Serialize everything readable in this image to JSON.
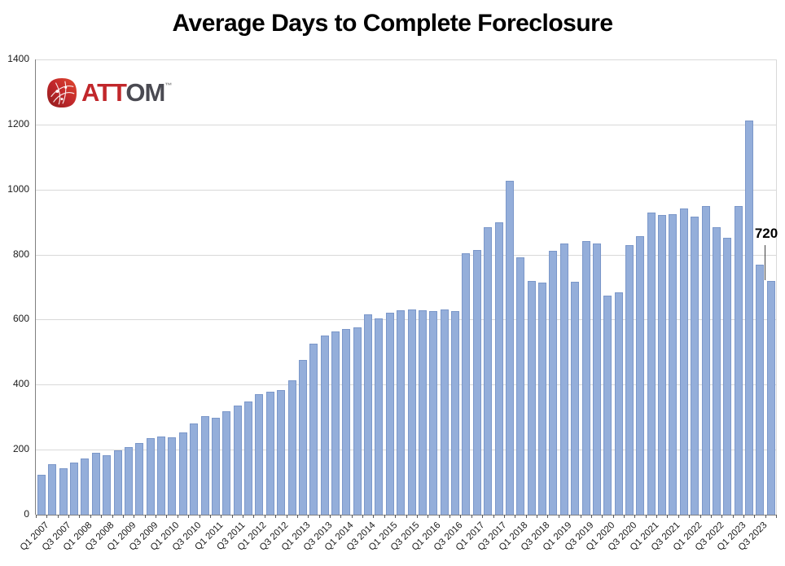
{
  "page": {
    "title": "Average Days to Complete Foreclosure"
  },
  "logo": {
    "att": "ATT",
    "om": "OM",
    "tm": "™"
  },
  "annotation": {
    "label": "720",
    "points_to": "Q4 2023"
  },
  "chart_data": {
    "type": "bar",
    "title": "Average Days to Complete Foreclosure",
    "xlabel": "",
    "ylabel": "",
    "ylim": [
      0,
      1400
    ],
    "yticks": [
      0,
      200,
      400,
      600,
      800,
      1000,
      1200,
      1400
    ],
    "grid": true,
    "legend": false,
    "bar_fill": "#94aeda",
    "bar_border": "#7b97c9",
    "categories": [
      "Q1 2007",
      "Q2 2007",
      "Q3 2007",
      "Q4 2007",
      "Q1 2008",
      "Q2 2008",
      "Q3 2008",
      "Q4 2008",
      "Q1 2009",
      "Q2 2009",
      "Q3 2009",
      "Q4 2009",
      "Q1 2010",
      "Q2 2010",
      "Q3 2010",
      "Q4 2010",
      "Q1 2011",
      "Q2 2011",
      "Q3 2011",
      "Q4 2011",
      "Q1 2012",
      "Q2 2012",
      "Q3 2012",
      "Q4 2012",
      "Q1 2013",
      "Q2 2013",
      "Q3 2013",
      "Q4 2013",
      "Q1 2014",
      "Q2 2014",
      "Q3 2014",
      "Q4 2014",
      "Q1 2015",
      "Q2 2015",
      "Q3 2015",
      "Q4 2015",
      "Q1 2016",
      "Q2 2016",
      "Q3 2016",
      "Q4 2016",
      "Q1 2017",
      "Q2 2017",
      "Q3 2017",
      "Q4 2017",
      "Q1 2018",
      "Q2 2018",
      "Q3 2018",
      "Q4 2018",
      "Q1 2019",
      "Q2 2019",
      "Q3 2019",
      "Q4 2019",
      "Q1 2020",
      "Q2 2020",
      "Q3 2020",
      "Q4 2020",
      "Q1 2021",
      "Q2 2021",
      "Q3 2021",
      "Q4 2021",
      "Q1 2022",
      "Q2 2022",
      "Q3 2022",
      "Q4 2022",
      "Q1 2023",
      "Q2 2023",
      "Q3 2023",
      "Q4 2023"
    ],
    "values": [
      122,
      155,
      144,
      160,
      172,
      190,
      183,
      198,
      208,
      221,
      235,
      240,
      237,
      253,
      280,
      304,
      298,
      318,
      336,
      348,
      370,
      378,
      382,
      414,
      477,
      526,
      551,
      564,
      572,
      577,
      615,
      604,
      620,
      629,
      630,
      629,
      625,
      631,
      625,
      803,
      814,
      883,
      899,
      1027,
      791,
      720,
      713,
      811,
      835,
      716,
      841,
      834,
      673,
      685,
      830,
      857,
      930,
      922,
      924,
      941,
      917,
      948,
      885,
      852,
      950,
      1212,
      770,
      720
    ],
    "x_tick_labels": [
      "Q1 2007",
      "Q3 2007",
      "Q1 2008",
      "Q3 2008",
      "Q1 2009",
      "Q3 2009",
      "Q1 2010",
      "Q3 2010",
      "Q1 2011",
      "Q3 2011",
      "Q1 2012",
      "Q3 2012",
      "Q1 2013",
      "Q3 2013",
      "Q1 2014",
      "Q3 2014",
      "Q1 2015",
      "Q3 2015",
      "Q1 2016",
      "Q3 2016",
      "Q1 2017",
      "Q3 2017",
      "Q1 2018",
      "Q3 2018",
      "Q1 2019",
      "Q3 2019",
      "Q1 2020",
      "Q3 2020",
      "Q1 2021",
      "Q3 2021",
      "Q1 2022",
      "Q3 2022",
      "Q1 2023",
      "Q3 2023"
    ]
  }
}
